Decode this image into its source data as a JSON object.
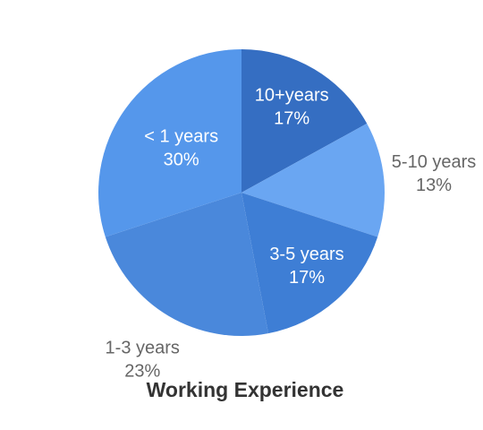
{
  "chart_data": {
    "type": "pie",
    "title": "Working Experience",
    "categories": [
      "10+years",
      "5-10 years",
      "3-5 years",
      "1-3 years",
      "< 1 years"
    ],
    "values": [
      17,
      13,
      17,
      23,
      30
    ],
    "value_labels": [
      "17%",
      "13%",
      "17%",
      "23%",
      "30%"
    ],
    "colors": [
      "#356ec2",
      "#6aa6f2",
      "#3e7ed5",
      "#4a88db",
      "#5597eb"
    ]
  }
}
